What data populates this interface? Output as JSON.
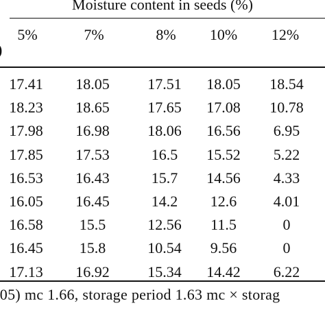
{
  "table": {
    "group_header": "Moisture content in seeds (%)",
    "partial_left_glyph": ")",
    "columns": [
      "5%",
      "7%",
      "8%",
      "10%",
      "12%"
    ],
    "rows": [
      [
        "17.41",
        "18.05",
        "17.51",
        "18.05",
        "18.54"
      ],
      [
        "18.23",
        "18.65",
        "17.65",
        "17.08",
        "10.78"
      ],
      [
        "17.98",
        "16.98",
        "18.06",
        "16.56",
        "6.95"
      ],
      [
        "17.85",
        "17.53",
        "16.5",
        "15.52",
        "5.22"
      ],
      [
        "16.53",
        "16.43",
        "15.7",
        "14.56",
        "4.33"
      ],
      [
        "16.05",
        "16.45",
        "14.2",
        "12.6",
        "4.01"
      ],
      [
        "16.58",
        "15.5",
        "12.56",
        "11.5",
        "0"
      ],
      [
        "16.45",
        "15.8",
        "10.54",
        "9.56",
        "0"
      ],
      [
        "17.13",
        "16.92",
        "15.34",
        "14.42",
        "6.22"
      ]
    ],
    "footnote": ".05) mc 1.66, storage period 1.63 mc × storag"
  }
}
